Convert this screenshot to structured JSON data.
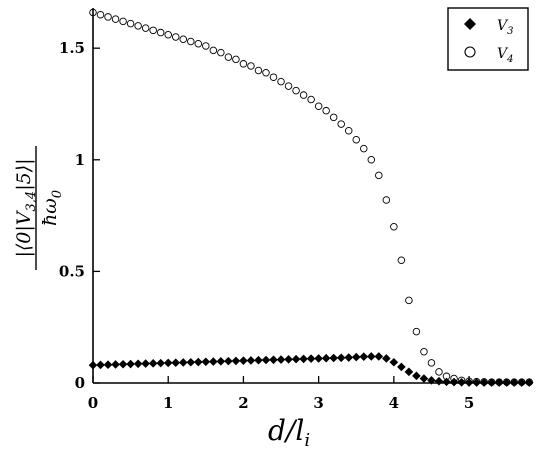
{
  "chart_data": {
    "type": "scatter",
    "title": "",
    "xlabel": "d/l_i",
    "ylabel": "|⟨0|V_{3,4}|5⟩| / ħω_0",
    "xlim": [
      0,
      5.85
    ],
    "ylim": [
      0,
      1.68
    ],
    "x_ticks": [
      "0",
      "1",
      "2",
      "3",
      "4",
      "5"
    ],
    "y_ticks": [
      "0",
      "0.5",
      "1",
      "1.5"
    ],
    "grid": false,
    "legend": "top-right",
    "series": [
      {
        "name": "V3",
        "marker": "filled-diamond",
        "color": "#000000",
        "x": [
          0.0,
          0.1,
          0.2,
          0.3,
          0.4,
          0.5,
          0.6,
          0.7,
          0.8,
          0.9,
          1.0,
          1.1,
          1.2,
          1.3,
          1.4,
          1.5,
          1.6,
          1.7,
          1.8,
          1.9,
          2.0,
          2.1,
          2.2,
          2.3,
          2.4,
          2.5,
          2.6,
          2.7,
          2.8,
          2.9,
          3.0,
          3.1,
          3.2,
          3.3,
          3.4,
          3.5,
          3.6,
          3.7,
          3.8,
          3.9,
          4.0,
          4.1,
          4.2,
          4.3,
          4.4,
          4.5,
          4.6,
          4.7,
          4.8,
          4.9,
          5.0,
          5.1,
          5.2,
          5.3,
          5.4,
          5.5,
          5.6,
          5.7,
          5.8
        ],
        "y": [
          0.08,
          0.081,
          0.082,
          0.083,
          0.084,
          0.085,
          0.086,
          0.087,
          0.088,
          0.089,
          0.09,
          0.091,
          0.092,
          0.093,
          0.094,
          0.095,
          0.096,
          0.097,
          0.098,
          0.099,
          0.1,
          0.101,
          0.102,
          0.103,
          0.104,
          0.105,
          0.106,
          0.107,
          0.108,
          0.109,
          0.11,
          0.111,
          0.112,
          0.113,
          0.114,
          0.116,
          0.118,
          0.119,
          0.119,
          0.11,
          0.093,
          0.072,
          0.05,
          0.032,
          0.02,
          0.012,
          0.008,
          0.005,
          0.004,
          0.003,
          0.002,
          0.002,
          0.002,
          0.002,
          0.002,
          0.002,
          0.002,
          0.002,
          0.002
        ]
      },
      {
        "name": "V4",
        "marker": "open-circle",
        "color": "#000000",
        "x": [
          0.0,
          0.1,
          0.2,
          0.3,
          0.4,
          0.5,
          0.6,
          0.7,
          0.8,
          0.9,
          1.0,
          1.1,
          1.2,
          1.3,
          1.4,
          1.5,
          1.6,
          1.7,
          1.8,
          1.9,
          2.0,
          2.1,
          2.2,
          2.3,
          2.4,
          2.5,
          2.6,
          2.7,
          2.8,
          2.9,
          3.0,
          3.1,
          3.2,
          3.3,
          3.4,
          3.5,
          3.6,
          3.7,
          3.8,
          3.9,
          4.0,
          4.1,
          4.2,
          4.3,
          4.4,
          4.5,
          4.6,
          4.7,
          4.8,
          4.9,
          5.0,
          5.1,
          5.2,
          5.3,
          5.4,
          5.5,
          5.6,
          5.7,
          5.8
        ],
        "y": [
          1.66,
          1.65,
          1.64,
          1.63,
          1.62,
          1.61,
          1.6,
          1.59,
          1.58,
          1.57,
          1.56,
          1.55,
          1.54,
          1.53,
          1.52,
          1.51,
          1.49,
          1.48,
          1.46,
          1.45,
          1.43,
          1.42,
          1.4,
          1.39,
          1.37,
          1.35,
          1.33,
          1.31,
          1.29,
          1.27,
          1.24,
          1.22,
          1.19,
          1.16,
          1.13,
          1.09,
          1.05,
          1.0,
          0.93,
          0.82,
          0.7,
          0.55,
          0.37,
          0.23,
          0.14,
          0.09,
          0.05,
          0.03,
          0.02,
          0.012,
          0.008,
          0.006,
          0.005,
          0.004,
          0.004,
          0.004,
          0.004,
          0.004,
          0.004
        ]
      }
    ]
  },
  "legend": {
    "v3_label": "V",
    "v3_sub": "3",
    "v4_label": "V",
    "v4_sub": "4"
  },
  "axis_titles": {
    "x_main": "d/l",
    "x_sub": "i",
    "y_num": "|⟨0|V",
    "y_num_sub": "3,4",
    "y_num_tail": "|5⟩|",
    "y_den": "ħω",
    "y_den_sub": "0"
  }
}
